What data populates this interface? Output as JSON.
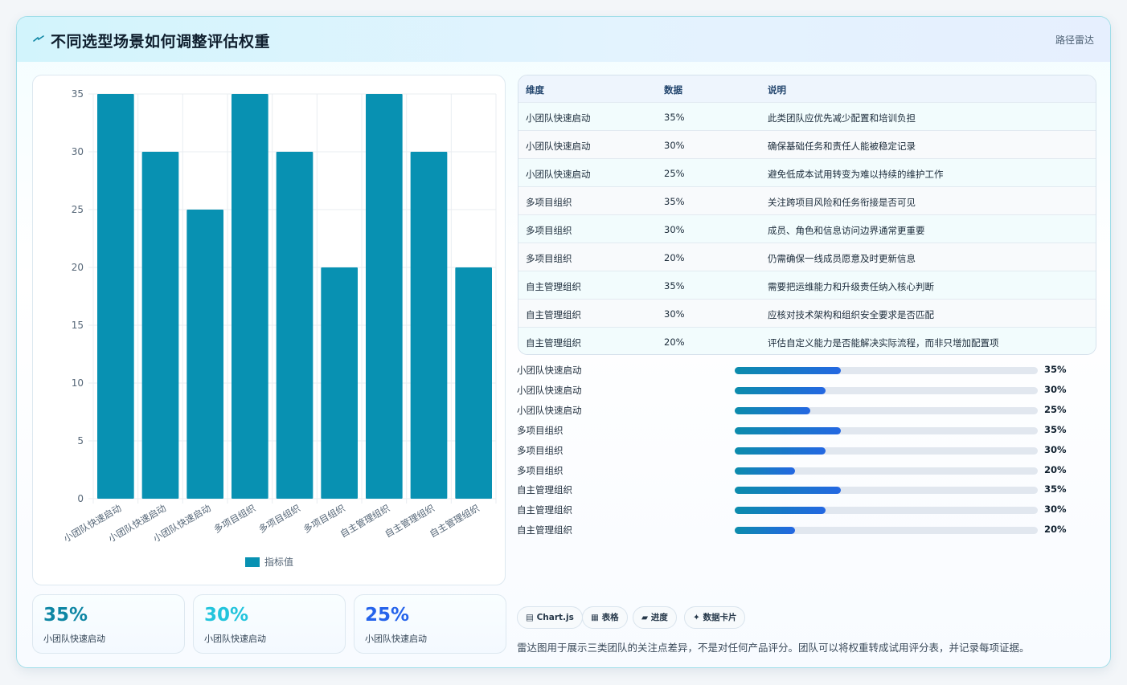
{
  "header": {
    "title": "不同选型场景如何调整评估权重",
    "right_label": "路径雷达",
    "icon": "lightning-icon"
  },
  "chart_data": {
    "type": "bar",
    "categories": [
      "小团队快速启动",
      "小团队快速启动",
      "小团队快速启动",
      "多项目组织",
      "多项目组织",
      "多项目组织",
      "自主管理组织",
      "自主管理组织",
      "自主管理组织"
    ],
    "series": [
      {
        "name": "指标值",
        "values": [
          35,
          30,
          25,
          35,
          30,
          20,
          35,
          30,
          20
        ],
        "color": "#0891b2"
      }
    ],
    "ylim": [
      0,
      35
    ],
    "yticks": [
      0,
      5,
      10,
      15,
      20,
      25,
      30,
      35
    ],
    "grid": true,
    "legend": "bottom"
  },
  "table": {
    "columns": [
      "维度",
      "数据",
      "说明"
    ],
    "rows": [
      [
        "小团队快速启动",
        "35%",
        "此类团队应优先减少配置和培训负担"
      ],
      [
        "小团队快速启动",
        "30%",
        "确保基础任务和责任人能被稳定记录"
      ],
      [
        "小团队快速启动",
        "25%",
        "避免低成本试用转变为难以持续的维护工作"
      ],
      [
        "多项目组织",
        "35%",
        "关注跨项目风险和任务衔接是否可见"
      ],
      [
        "多项目组织",
        "30%",
        "成员、角色和信息访问边界通常更重要"
      ],
      [
        "多项目组织",
        "20%",
        "仍需确保一线成员愿意及时更新信息"
      ],
      [
        "自主管理组织",
        "35%",
        "需要把运维能力和升级责任纳入核心判断"
      ],
      [
        "自主管理组织",
        "30%",
        "应核对技术架构和组织安全要求是否匹配"
      ],
      [
        "自主管理组织",
        "20%",
        "评估自定义能力是否能解决实际流程，而非只增加配置项"
      ]
    ]
  },
  "progress": [
    {
      "label": "小团队快速启动",
      "value": 35,
      "text": "35%"
    },
    {
      "label": "小团队快速启动",
      "value": 30,
      "text": "30%"
    },
    {
      "label": "小团队快速启动",
      "value": 25,
      "text": "25%"
    },
    {
      "label": "多项目组织",
      "value": 35,
      "text": "35%"
    },
    {
      "label": "多项目组织",
      "value": 30,
      "text": "30%"
    },
    {
      "label": "多项目组织",
      "value": 20,
      "text": "20%"
    },
    {
      "label": "自主管理组织",
      "value": 35,
      "text": "35%"
    },
    {
      "label": "自主管理组织",
      "value": 30,
      "text": "30%"
    },
    {
      "label": "自主管理组织",
      "value": 20,
      "text": "20%"
    }
  ],
  "stats": [
    {
      "value": "35%",
      "label": "小团队快速启动",
      "color": "#0e86a4"
    },
    {
      "value": "30%",
      "label": "小团队快速启动",
      "color": "#22c4dc"
    },
    {
      "value": "25%",
      "label": "小团队快速启动",
      "color": "#2563eb"
    }
  ],
  "tags": [
    {
      "icon": "chart-icon",
      "label": "▤ Chart.js"
    },
    {
      "icon": "table-icon",
      "label": "▦ 表格"
    },
    {
      "icon": "progress-icon",
      "label": "▰ 进度"
    },
    {
      "icon": "sparkle-icon",
      "label": "✦ 数据卡片"
    }
  ],
  "note": "雷达图用于展示三类团队的关注点差异，不是对任何产品评分。团队可以将权重转成试用评分表，并记录每项证据。"
}
